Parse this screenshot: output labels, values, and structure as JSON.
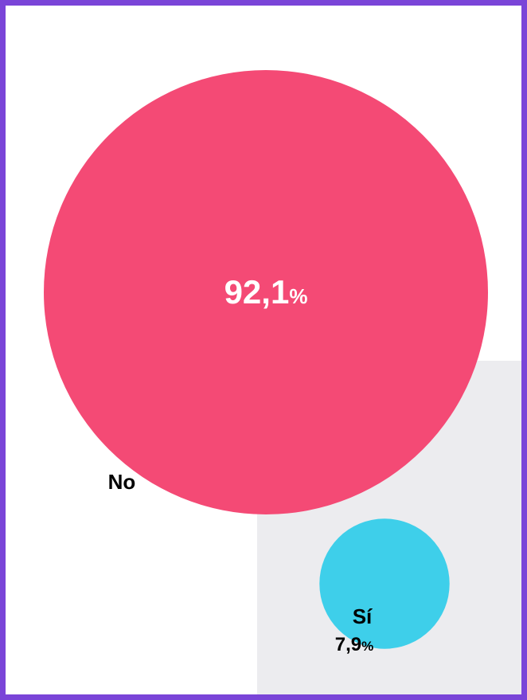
{
  "chart_data": {
    "type": "bubble",
    "unit": "%",
    "categories": [
      "No",
      "Sí"
    ],
    "values": [
      92.1,
      7.9
    ],
    "value_labels": [
      "92,1",
      "7,9"
    ],
    "colors": [
      "#f44a75",
      "#3ecfea"
    ],
    "background_panel_color": "#ececef",
    "label_color_inside": "#ffffff",
    "label_color_outside": "#000000"
  },
  "frame": {
    "border_color": "#7a45d8"
  }
}
